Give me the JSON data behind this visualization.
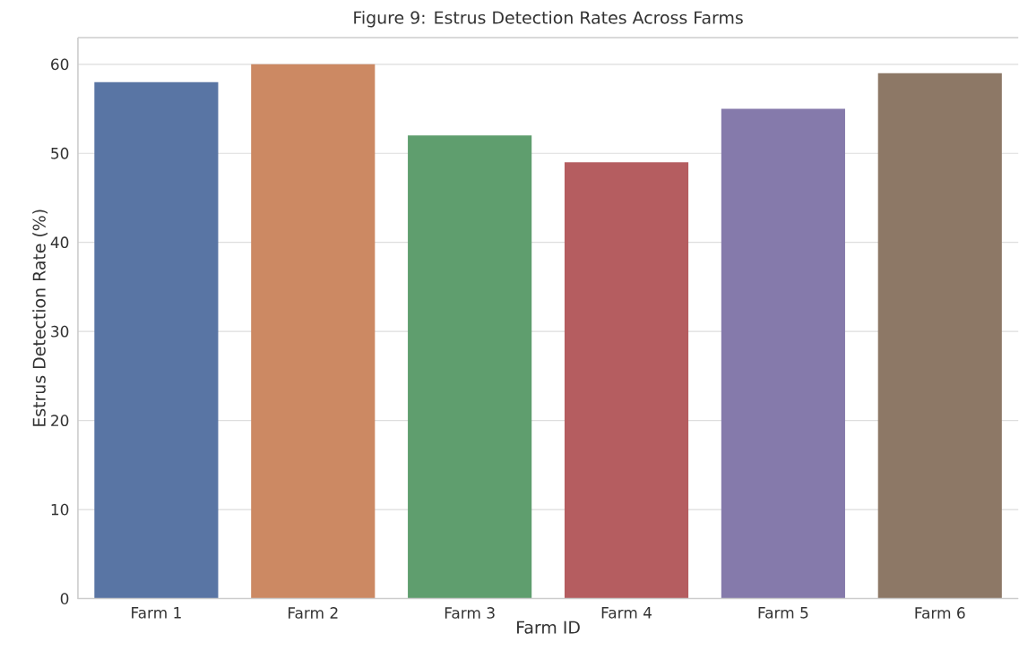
{
  "chart_data": {
    "type": "bar",
    "title": "Figure 9: Estrus Detection Rates Across Farms",
    "xlabel": "Farm ID",
    "ylabel": "Estrus Detection Rate (%)",
    "categories": [
      "Farm 1",
      "Farm 2",
      "Farm 3",
      "Farm 4",
      "Farm 5",
      "Farm 6"
    ],
    "values": [
      58,
      60,
      52,
      49,
      55,
      59
    ],
    "colors": [
      "#5975a4",
      "#cc8963",
      "#5f9e6e",
      "#b55d60",
      "#857aab",
      "#8d7866"
    ],
    "ylim": [
      0,
      63
    ],
    "yticks": [
      0,
      10,
      20,
      30,
      40,
      50,
      60
    ],
    "grid": "y"
  }
}
